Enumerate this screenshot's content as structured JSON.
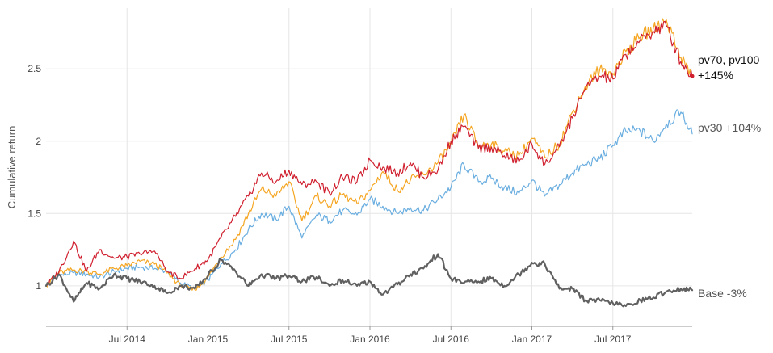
{
  "chart_data": {
    "type": "line",
    "title": "",
    "xlabel": "",
    "ylabel": "Cumulative return",
    "xlim": [
      2014.0,
      2017.99
    ],
    "ylim": [
      0.72,
      2.92
    ],
    "grid": true,
    "x_ticks": [
      {
        "x": 2014.5,
        "label": "Jul 2014"
      },
      {
        "x": 2015.0,
        "label": "Jan 2015"
      },
      {
        "x": 2015.5,
        "label": "Jul 2015"
      },
      {
        "x": 2016.0,
        "label": "Jan 2016"
      },
      {
        "x": 2016.5,
        "label": "Jul 2016"
      },
      {
        "x": 2017.0,
        "label": "Jan 2017"
      },
      {
        "x": 2017.5,
        "label": "Jul 2017"
      }
    ],
    "y_ticks": [
      {
        "y": 1.0,
        "label": "1"
      },
      {
        "y": 1.5,
        "label": "1.5"
      },
      {
        "y": 2.0,
        "label": "2"
      },
      {
        "y": 2.5,
        "label": "2.5"
      }
    ],
    "series": [
      {
        "name": "pv30",
        "color": "#6aaee0",
        "width": 1.2,
        "x": [
          2014.0,
          2014.08,
          2014.17,
          2014.25,
          2014.33,
          2014.42,
          2014.5,
          2014.58,
          2014.67,
          2014.75,
          2014.83,
          2014.92,
          2015.0,
          2015.08,
          2015.17,
          2015.25,
          2015.33,
          2015.42,
          2015.5,
          2015.58,
          2015.67,
          2015.75,
          2015.83,
          2015.92,
          2016.0,
          2016.08,
          2016.17,
          2016.25,
          2016.33,
          2016.42,
          2016.5,
          2016.58,
          2016.67,
          2016.75,
          2016.83,
          2016.92,
          2017.0,
          2017.08,
          2017.17,
          2017.25,
          2017.33,
          2017.42,
          2017.5,
          2017.58,
          2017.67,
          2017.75,
          2017.83,
          2017.92,
          2017.99
        ],
        "values": [
          1.0,
          1.07,
          1.09,
          1.08,
          1.06,
          1.1,
          1.12,
          1.13,
          1.12,
          1.1,
          1.02,
          0.98,
          1.04,
          1.15,
          1.25,
          1.39,
          1.5,
          1.46,
          1.55,
          1.33,
          1.49,
          1.45,
          1.52,
          1.49,
          1.6,
          1.55,
          1.5,
          1.54,
          1.52,
          1.6,
          1.68,
          1.84,
          1.72,
          1.74,
          1.68,
          1.64,
          1.73,
          1.62,
          1.7,
          1.78,
          1.84,
          1.88,
          1.97,
          2.07,
          2.07,
          2.0,
          2.12,
          2.2,
          2.05
        ]
      },
      {
        "name": "pv70",
        "color": "#f5a623",
        "width": 1.2,
        "x": [
          2014.0,
          2014.08,
          2014.17,
          2014.25,
          2014.33,
          2014.42,
          2014.5,
          2014.58,
          2014.67,
          2014.75,
          2014.83,
          2014.92,
          2015.0,
          2015.08,
          2015.17,
          2015.25,
          2015.33,
          2015.42,
          2015.5,
          2015.58,
          2015.67,
          2015.75,
          2015.83,
          2015.92,
          2016.0,
          2016.08,
          2016.17,
          2016.25,
          2016.33,
          2016.42,
          2016.5,
          2016.58,
          2016.67,
          2016.75,
          2016.83,
          2016.92,
          2017.0,
          2017.08,
          2017.17,
          2017.25,
          2017.33,
          2017.42,
          2017.5,
          2017.58,
          2017.67,
          2017.75,
          2017.83,
          2017.92,
          2017.99
        ],
        "values": [
          1.0,
          1.09,
          1.11,
          1.1,
          1.08,
          1.12,
          1.14,
          1.17,
          1.15,
          1.09,
          1.0,
          0.97,
          1.06,
          1.2,
          1.32,
          1.5,
          1.67,
          1.62,
          1.72,
          1.45,
          1.62,
          1.55,
          1.63,
          1.57,
          1.66,
          1.79,
          1.66,
          1.73,
          1.77,
          1.85,
          1.98,
          2.18,
          1.97,
          1.98,
          1.93,
          1.9,
          2.02,
          1.89,
          1.98,
          2.2,
          2.38,
          2.5,
          2.47,
          2.62,
          2.72,
          2.78,
          2.84,
          2.58,
          2.45
        ]
      },
      {
        "name": "pv100",
        "color": "#d0202f",
        "width": 1.2,
        "x": [
          2014.0,
          2014.08,
          2014.17,
          2014.25,
          2014.33,
          2014.42,
          2014.5,
          2014.58,
          2014.67,
          2014.75,
          2014.83,
          2014.92,
          2015.0,
          2015.08,
          2015.17,
          2015.25,
          2015.33,
          2015.42,
          2015.5,
          2015.58,
          2015.67,
          2015.75,
          2015.83,
          2015.92,
          2016.0,
          2016.08,
          2016.17,
          2016.25,
          2016.33,
          2016.42,
          2016.5,
          2016.58,
          2016.67,
          2016.75,
          2016.83,
          2016.92,
          2017.0,
          2017.08,
          2017.17,
          2017.25,
          2017.33,
          2017.42,
          2017.5,
          2017.58,
          2017.67,
          2017.75,
          2017.83,
          2017.92,
          2017.99
        ],
        "values": [
          1.0,
          1.1,
          1.31,
          1.1,
          1.25,
          1.19,
          1.2,
          1.22,
          1.24,
          1.1,
          1.05,
          1.12,
          1.18,
          1.33,
          1.48,
          1.62,
          1.78,
          1.72,
          1.8,
          1.7,
          1.72,
          1.64,
          1.75,
          1.72,
          1.87,
          1.82,
          1.78,
          1.85,
          1.75,
          1.8,
          2.0,
          2.1,
          1.95,
          1.96,
          1.9,
          1.86,
          1.98,
          1.84,
          1.96,
          2.16,
          2.36,
          2.45,
          2.43,
          2.6,
          2.7,
          2.76,
          2.8,
          2.55,
          2.45
        ]
      },
      {
        "name": "Base",
        "color": "#606060",
        "width": 2.2,
        "x": [
          2014.0,
          2014.08,
          2014.17,
          2014.25,
          2014.33,
          2014.42,
          2014.5,
          2014.58,
          2014.67,
          2014.75,
          2014.83,
          2014.92,
          2015.0,
          2015.08,
          2015.17,
          2015.25,
          2015.33,
          2015.42,
          2015.5,
          2015.58,
          2015.67,
          2015.75,
          2015.83,
          2015.92,
          2016.0,
          2016.08,
          2016.17,
          2016.25,
          2016.33,
          2016.42,
          2016.5,
          2016.58,
          2016.67,
          2016.75,
          2016.83,
          2016.92,
          2017.0,
          2017.08,
          2017.17,
          2017.25,
          2017.33,
          2017.42,
          2017.5,
          2017.58,
          2017.67,
          2017.75,
          2017.83,
          2017.92,
          2017.99
        ],
        "values": [
          1.0,
          1.08,
          0.89,
          1.02,
          0.98,
          1.08,
          1.05,
          1.03,
          1.0,
          0.95,
          1.0,
          0.98,
          1.07,
          1.18,
          1.1,
          1.0,
          1.08,
          1.05,
          1.07,
          1.03,
          1.06,
          1.0,
          1.04,
          1.0,
          1.03,
          0.94,
          1.01,
          1.08,
          1.12,
          1.22,
          1.05,
          1.02,
          1.03,
          1.05,
          1.0,
          1.08,
          1.16,
          1.15,
          0.98,
          0.98,
          0.9,
          0.9,
          0.88,
          0.86,
          0.9,
          0.92,
          0.96,
          0.98,
          0.97
        ]
      }
    ],
    "end_labels": [
      {
        "series": "pv70",
        "text_lines": [
          "pv70, pv100",
          "+145%"
        ],
        "color": "#111111"
      },
      {
        "series": "pv30",
        "text_lines": [
          "pv30 +104%"
        ],
        "color": "#555555"
      },
      {
        "series": "Base",
        "text_lines": [
          "Base -3%"
        ],
        "color": "#555555"
      }
    ]
  }
}
